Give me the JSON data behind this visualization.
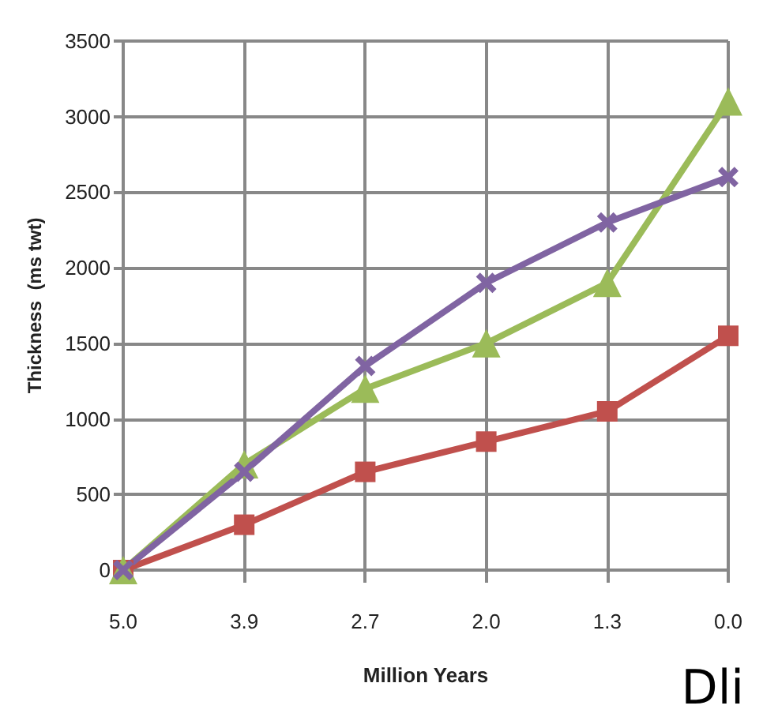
{
  "chart_data": {
    "type": "line",
    "xlabel": "Million Years",
    "ylabel": "Thickness  (ms twt)",
    "categories": [
      "5.0",
      "3.9",
      "2.7",
      "2.0",
      "1.3",
      "0.0"
    ],
    "series": [
      {
        "color": "#c0504d",
        "marker": "square",
        "values": [
          0,
          300,
          650,
          850,
          1050,
          1550
        ]
      },
      {
        "color": "#9bbb59",
        "marker": "triangle",
        "values": [
          0,
          700,
          1200,
          1500,
          1900,
          3100
        ]
      },
      {
        "color": "#8064a2",
        "marker": "cross",
        "values": [
          0,
          650,
          1350,
          1900,
          2300,
          2600
        ]
      }
    ],
    "ylim": [
      0,
      3500
    ],
    "yticks": [
      0,
      500,
      1000,
      1500,
      2000,
      2500,
      3000,
      3500
    ],
    "grid": true,
    "annotations": [
      "Dli"
    ]
  }
}
